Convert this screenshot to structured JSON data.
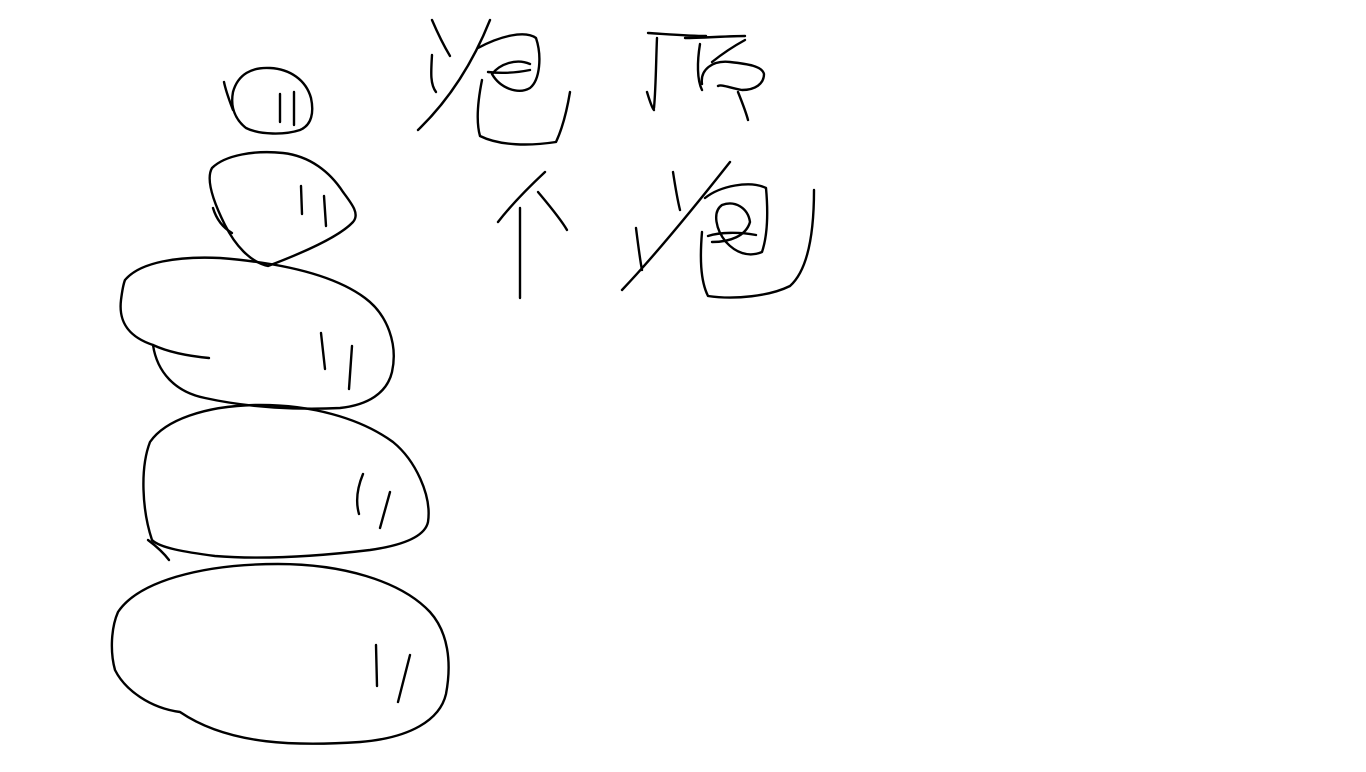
{
  "canvas": {
    "background": "#ffffff",
    "stroke_color": "#000000",
    "description_icon": "freehand-drawing"
  },
  "drawing": {
    "stones": [
      "stone-1",
      "stone-2",
      "stone-3",
      "stone-4",
      "stone-5"
    ],
    "handwriting": [
      "泡",
      "顶",
      "个",
      "泡"
    ]
  }
}
